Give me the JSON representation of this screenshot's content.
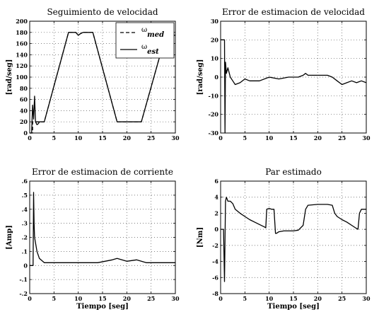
{
  "chart_data": [
    {
      "type": "line",
      "title": "Seguimiento de velocidad",
      "xlabel": "",
      "ylabel": "[rad/seg]",
      "xlim": [
        0,
        30
      ],
      "ylim": [
        0,
        200
      ],
      "xticks": [
        0,
        5,
        10,
        15,
        20,
        25,
        30
      ],
      "yticks": [
        0,
        20,
        40,
        60,
        80,
        100,
        120,
        140,
        160,
        180,
        200
      ],
      "grid": true,
      "legend_position": "top-right",
      "series": [
        {
          "name": "ω_med",
          "style": "dashed",
          "x": [
            0,
            0.6,
            0.6,
            1.0,
            1.2,
            1.5,
            1.8,
            2.0,
            2.5,
            3.0,
            8.0,
            8.5,
            9.5,
            10.0,
            10.5,
            11.0,
            12.0,
            13.0,
            18.0,
            23.0,
            28.0,
            28.5,
            30
          ],
          "y": [
            0,
            0,
            20,
            20,
            20,
            20,
            20,
            20,
            20,
            20,
            180,
            180,
            180,
            175,
            178,
            180,
            180,
            180,
            20,
            20,
            175,
            175,
            175
          ]
        },
        {
          "name": "ω_est",
          "style": "solid",
          "x": [
            0,
            0.4,
            0.6,
            0.8,
            1.0,
            1.2,
            1.5,
            1.8,
            2.0,
            2.5,
            3.0,
            8.0,
            8.5,
            9.5,
            10.0,
            10.5,
            11.0,
            12.0,
            13.0,
            18.0,
            23.0,
            28.0,
            28.5,
            30
          ],
          "y": [
            0,
            0,
            50,
            25,
            66,
            20,
            15,
            17,
            20,
            20,
            20,
            180,
            180,
            180,
            175,
            178,
            180,
            180,
            180,
            20,
            20,
            175,
            175,
            175
          ]
        }
      ]
    },
    {
      "type": "line",
      "title": "Error de estimacion de velocidad",
      "xlabel": "",
      "ylabel": "[rad/seg]",
      "xlim": [
        0,
        30
      ],
      "ylim": [
        -30,
        30
      ],
      "xticks": [
        0,
        5,
        10,
        15,
        20,
        25,
        30
      ],
      "yticks": [
        -30,
        -20,
        -10,
        0,
        10,
        20,
        30
      ],
      "grid": true,
      "series": [
        {
          "x": [
            0,
            0.8,
            0.9,
            1.0,
            1.2,
            1.5,
            2.0,
            2.5,
            3.0,
            4.0,
            5.0,
            6.0,
            8.0,
            10.0,
            12.0,
            14.0,
            16.0,
            17.0,
            17.5,
            18.0,
            20.0,
            22.0,
            23.0,
            24.0,
            25.0,
            26.0,
            27.0,
            28.0,
            29.0,
            30.0
          ],
          "y": [
            20,
            20,
            -30,
            8,
            2,
            5,
            0,
            -2,
            -4,
            -3,
            -1,
            -2,
            -2,
            0,
            -1,
            0,
            0,
            1,
            2,
            1,
            1,
            1,
            0,
            -2,
            -4,
            -3,
            -2,
            -3,
            -2,
            -3
          ]
        }
      ]
    },
    {
      "type": "line",
      "title": "Error de estimacion de corriente",
      "xlabel": "Tiempo [seg]",
      "ylabel": "[Amp]",
      "xlim": [
        0,
        30
      ],
      "ylim": [
        -0.2,
        0.6
      ],
      "xticks": [
        0,
        5,
        10,
        15,
        20,
        25,
        30
      ],
      "yticks": [
        -0.2,
        -0.1,
        0,
        0.1,
        0.2,
        0.3,
        0.4,
        0.5,
        0.6
      ],
      "grid": true,
      "series": [
        {
          "x": [
            0,
            0.7,
            0.8,
            0.9,
            1.0,
            1.5,
            2.0,
            3.0,
            5.0,
            8.0,
            10.0,
            12.0,
            14.0,
            17.0,
            18.0,
            20.0,
            22.0,
            24.0,
            26.0,
            28.0,
            30.0
          ],
          "y": [
            0,
            0,
            0.52,
            0.3,
            0.2,
            0.1,
            0.05,
            0.02,
            0.02,
            0.02,
            0.02,
            0.02,
            0.02,
            0.04,
            0.05,
            0.03,
            0.04,
            0.02,
            0.02,
            0.02,
            0.02
          ]
        }
      ]
    },
    {
      "type": "line",
      "title": "Par estimado",
      "xlabel": "Tiempo [seg]",
      "ylabel": "[Nm]",
      "xlim": [
        0,
        30
      ],
      "ylim": [
        -8,
        6
      ],
      "xticks": [
        0,
        5,
        10,
        15,
        20,
        25,
        30
      ],
      "yticks": [
        -8,
        -6,
        -4,
        -2,
        0,
        2,
        4,
        6
      ],
      "grid": true,
      "series": [
        {
          "x": [
            0,
            0.6,
            0.8,
            1.0,
            1.2,
            1.5,
            2.0,
            2.5,
            3.0,
            4.0,
            5.0,
            6.0,
            7.0,
            8.0,
            9.0,
            9.3,
            9.5,
            10.0,
            10.5,
            11.0,
            11.3,
            11.5,
            12.0,
            13.0,
            14.0,
            15.0,
            16.0,
            17.0,
            17.5,
            18.0,
            20.0,
            22.0,
            23.0,
            23.5,
            24.0,
            25.0,
            26.0,
            27.0,
            28.0,
            28.3,
            28.6,
            29.0,
            30.0
          ],
          "y": [
            0,
            0,
            -6.5,
            3.5,
            4.0,
            3.5,
            3.5,
            3.2,
            2.5,
            2.0,
            1.6,
            1.2,
            0.9,
            0.6,
            0.3,
            0.2,
            2.5,
            2.6,
            2.5,
            2.5,
            -0.5,
            -0.5,
            -0.3,
            -0.2,
            -0.2,
            -0.2,
            -0.1,
            0.5,
            2.5,
            3.0,
            3.1,
            3.1,
            3.0,
            2.0,
            1.6,
            1.2,
            0.9,
            0.5,
            0.1,
            0.0,
            2.0,
            2.5,
            2.5
          ]
        }
      ]
    }
  ]
}
